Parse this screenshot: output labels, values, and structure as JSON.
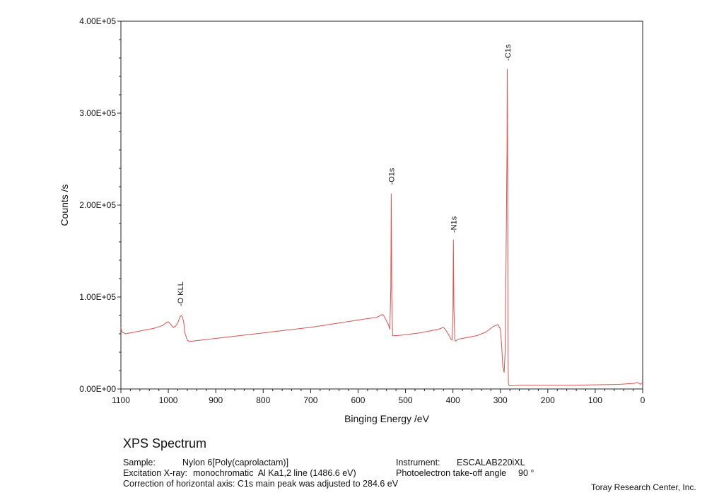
{
  "chart_data": {
    "type": "line",
    "title": "XPS Spectrum",
    "xlabel": "Binging Energy /eV",
    "ylabel": "Counts /s",
    "xlim": [
      1100,
      0
    ],
    "ylim": [
      0,
      400000
    ],
    "x_reversed": true,
    "x_ticks": [
      1100,
      1000,
      900,
      800,
      700,
      600,
      500,
      400,
      300,
      200,
      100,
      0
    ],
    "y_ticks": [
      0,
      100000,
      200000,
      300000,
      400000
    ],
    "y_tick_labels": [
      "0.00E+00",
      "1.00E+05",
      "2.00E+05",
      "3.00E+05",
      "4.00E+05"
    ],
    "grid": false,
    "series": [
      {
        "color": "#d9534f",
        "x": [
          1100,
          1098,
          1090,
          1070,
          1050,
          1030,
          1012,
          1005,
          1000,
          996,
          990,
          985,
          980,
          975,
          972,
          968,
          965,
          960,
          957,
          950,
          900,
          850,
          800,
          750,
          700,
          650,
          600,
          560,
          553,
          548,
          545,
          540,
          536,
          533,
          531,
          530,
          529,
          527,
          525,
          520,
          500,
          470,
          450,
          430,
          420,
          415,
          410,
          405,
          402,
          400,
          399,
          398,
          396,
          394,
          390,
          380,
          350,
          330,
          315,
          305,
          300,
          297,
          295,
          292,
          290,
          288,
          286,
          285.5,
          285,
          284.6,
          284,
          283.5,
          283,
          282,
          281,
          279,
          275,
          260,
          200,
          150,
          100,
          50,
          20,
          10,
          5,
          2,
          0
        ],
        "y": [
          67000,
          62000,
          60000,
          62000,
          64000,
          66000,
          69000,
          72000,
          73000,
          71000,
          67000,
          68000,
          72000,
          79000,
          80000,
          74000,
          61000,
          53000,
          52000,
          52000,
          55000,
          58000,
          61000,
          64000,
          67000,
          71000,
          75000,
          78000,
          80000,
          81000,
          79000,
          74000,
          70000,
          65000,
          110000,
          212000,
          100000,
          58000,
          58000,
          58000,
          59000,
          61000,
          63000,
          65000,
          67000,
          64000,
          60000,
          55000,
          53000,
          80000,
          162000,
          90000,
          53000,
          52000,
          54000,
          55000,
          58000,
          62000,
          68000,
          70000,
          65000,
          45000,
          25000,
          18000,
          40000,
          140000,
          260000,
          348000,
          300000,
          200000,
          80000,
          20000,
          6000,
          4000,
          3500,
          3500,
          3500,
          4000,
          4000,
          4000,
          4500,
          5000,
          6000,
          7000,
          5000,
          6500,
          7000
        ]
      }
    ],
    "annotations": [
      {
        "text": "-O KLL",
        "x": 975,
        "y": 90000
      },
      {
        "text": "-O1s",
        "x": 530,
        "y": 222000
      },
      {
        "text": "-N1s",
        "x": 399,
        "y": 170000
      },
      {
        "text": "-C1s",
        "x": 284.6,
        "y": 357000
      }
    ]
  },
  "info": {
    "sample_label": "Sample:",
    "sample_value": "Nylon 6[Poly(caprolactam)]",
    "excitation_label": "Excitation X-ray:",
    "excitation_value": "monochromatic  Al Ka1,2 line (1486.6 eV)",
    "correction": "Correction of horizontal axis: C1s main peak was adjusted to 284.6 eV",
    "instrument_label": "Instrument:",
    "instrument_value": "ESCALAB220iXL",
    "angle_label": "Photoelectron take-off angle",
    "angle_value": "90 °"
  },
  "credit": "Toray Research Center, Inc."
}
